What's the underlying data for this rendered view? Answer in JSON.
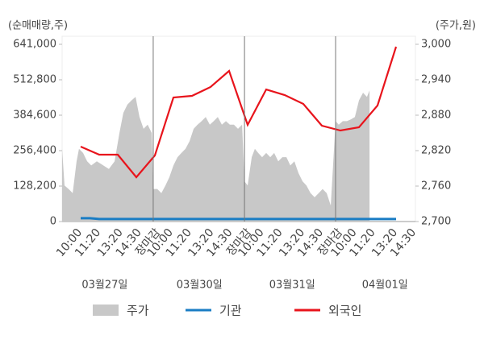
{
  "chart_data": {
    "type": "line",
    "y_axis_label": "(순매매량,주)",
    "y2_axis_label": "(주가,원)",
    "xlim": [
      0,
      19
    ],
    "xticks": [
      {
        "value": 0.7,
        "label": "10:00"
      },
      {
        "value": 1.7,
        "label": "11:20"
      },
      {
        "value": 2.9,
        "label": "13:20"
      },
      {
        "value": 3.9,
        "label": "14:30"
      },
      {
        "value": 4.91,
        "label": "장마감",
        "color": "#e8141c"
      },
      {
        "value": 5.6,
        "label": "10:00"
      },
      {
        "value": 6.6,
        "label": "11:20"
      },
      {
        "value": 7.8,
        "label": "13:20"
      },
      {
        "value": 8.8,
        "label": "14:30"
      },
      {
        "value": 9.83,
        "label": "장마감",
        "color": "#e8141c"
      },
      {
        "value": 10.5,
        "label": "10:00"
      },
      {
        "value": 11.5,
        "label": "11:20"
      },
      {
        "value": 12.7,
        "label": "13:20"
      },
      {
        "value": 13.7,
        "label": "14:30"
      },
      {
        "value": 14.74,
        "label": "장마감",
        "color": "#e8141c"
      },
      {
        "value": 15.5,
        "label": "10:00"
      },
      {
        "value": 16.5,
        "label": "11:20"
      },
      {
        "value": 17.7,
        "label": "13:20"
      },
      {
        "value": 18.7,
        "label": "14:30"
      }
    ],
    "date_labels": [
      {
        "value": 2.3,
        "label": "03월27일"
      },
      {
        "value": 7.4,
        "label": "03월30일"
      },
      {
        "value": 12.4,
        "label": "03월31일"
      },
      {
        "value": 17.4,
        "label": "04월01일"
      }
    ],
    "ylim": [
      0,
      641000
    ],
    "yticks": [
      0,
      {
        "value": 128200,
        "label": "128,200"
      },
      {
        "value": 256400,
        "label": "256,400"
      },
      {
        "value": 384600,
        "label": "384,600"
      },
      {
        "value": 512800,
        "label": "512,800"
      },
      {
        "value": 641000,
        "label": "641,000"
      }
    ],
    "y2lim": [
      2700,
      3000
    ],
    "y2ticks": [
      {
        "value": 2700,
        "label": "2,700"
      },
      {
        "value": 2760,
        "label": "2,760"
      },
      {
        "value": 2820,
        "label": "2,820"
      },
      {
        "value": 2880,
        "label": "2,880"
      },
      {
        "value": 2940,
        "label": "2,940"
      },
      {
        "value": 3000,
        "label": "3,000"
      }
    ],
    "series": [
      {
        "name": "주가",
        "kind": "area",
        "axis": "y2",
        "color": "#c8c8c8",
        "x": [
          0,
          0.13,
          0.35,
          0.57,
          0.78,
          0.91,
          1.13,
          1.35,
          1.57,
          1.87,
          2.22,
          2.52,
          2.83,
          3.09,
          3.3,
          3.52,
          3.74,
          3.96,
          4.17,
          4.39,
          4.61,
          4.83,
          4.91,
          5.13,
          5.35,
          5.57,
          5.78,
          6,
          6.22,
          6.43,
          6.65,
          6.87,
          7.09,
          7.3,
          7.52,
          7.74,
          7.96,
          8.17,
          8.39,
          8.61,
          8.83,
          9.04,
          9.26,
          9.48,
          9.7,
          9.83,
          10,
          10.22,
          10.39,
          10.57,
          10.78,
          11,
          11.22,
          11.43,
          11.65,
          11.87,
          12.09,
          12.3,
          12.52,
          12.74,
          12.96,
          13.17,
          13.39,
          13.61,
          13.83,
          14.04,
          14.26,
          14.48,
          14.74,
          14.91,
          15.13,
          15.35,
          15.57,
          15.78,
          16,
          16.22,
          16.43,
          16.57
        ],
        "values": [
          2823,
          2761,
          2755,
          2748,
          2802,
          2823,
          2816,
          2802,
          2795,
          2802,
          2795,
          2789,
          2802,
          2850,
          2884,
          2898,
          2905,
          2911,
          2877,
          2857,
          2864,
          2850,
          2755,
          2755,
          2748,
          2761,
          2775,
          2795,
          2809,
          2816,
          2823,
          2836,
          2857,
          2864,
          2870,
          2877,
          2864,
          2870,
          2877,
          2864,
          2870,
          2864,
          2864,
          2857,
          2864,
          2768,
          2761,
          2809,
          2823,
          2816,
          2809,
          2816,
          2809,
          2816,
          2802,
          2809,
          2809,
          2795,
          2802,
          2782,
          2768,
          2761,
          2748,
          2741,
          2748,
          2755,
          2748,
          2727,
          2870,
          2864,
          2870,
          2870,
          2873,
          2877,
          2905,
          2918,
          2911,
          2922
        ]
      },
      {
        "name": "기관",
        "kind": "line",
        "color": "#1a7dc4",
        "x": [
          1,
          1.5,
          2,
          3,
          4,
          5,
          6,
          7,
          8,
          9,
          10,
          11,
          12,
          13,
          14,
          15,
          16,
          17,
          18
        ],
        "values": [
          12000,
          12000,
          9000,
          9000,
          9000,
          9000,
          9000,
          9000,
          9000,
          9000,
          9000,
          9000,
          9000,
          9000,
          9000,
          9000,
          9000,
          9000,
          9000
        ]
      },
      {
        "name": "외국인",
        "kind": "line",
        "color": "#e8141c",
        "x": [
          1,
          2,
          3,
          4,
          5,
          6,
          7,
          8,
          9,
          10,
          11,
          12,
          13,
          14,
          15,
          16,
          17,
          18
        ],
        "values": [
          271000,
          241800,
          241800,
          160250,
          238900,
          448700,
          454500,
          486600,
          544900,
          349600,
          477800,
          457400,
          425400,
          346700,
          329200,
          340900,
          419600,
          632300
        ]
      }
    ]
  }
}
